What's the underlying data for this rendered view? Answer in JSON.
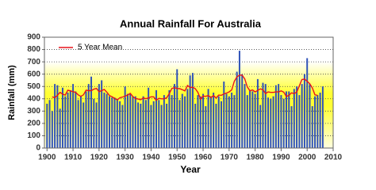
{
  "chart_data": {
    "type": "bar",
    "title": "Annual Rainfall For Australia",
    "x_label": "Year",
    "y_label": "Rainfall (mm)",
    "x": [
      1900,
      1901,
      1902,
      1903,
      1904,
      1905,
      1906,
      1907,
      1908,
      1909,
      1910,
      1911,
      1912,
      1913,
      1914,
      1915,
      1916,
      1917,
      1918,
      1919,
      1920,
      1921,
      1922,
      1923,
      1924,
      1925,
      1926,
      1927,
      1928,
      1929,
      1930,
      1931,
      1932,
      1933,
      1934,
      1935,
      1936,
      1937,
      1938,
      1939,
      1940,
      1941,
      1942,
      1943,
      1944,
      1945,
      1946,
      1947,
      1948,
      1949,
      1950,
      1951,
      1952,
      1953,
      1954,
      1955,
      1956,
      1957,
      1958,
      1959,
      1960,
      1961,
      1962,
      1963,
      1964,
      1965,
      1966,
      1967,
      1968,
      1969,
      1970,
      1971,
      1972,
      1973,
      1974,
      1975,
      1976,
      1977,
      1978,
      1979,
      1980,
      1981,
      1982,
      1983,
      1984,
      1985,
      1986,
      1987,
      1988,
      1989,
      1990,
      1991,
      1992,
      1993,
      1994,
      1995,
      1996,
      1997,
      1998,
      1999,
      2000,
      2001,
      2002,
      2003,
      2004,
      2005,
      2006
    ],
    "values": [
      360,
      390,
      300,
      520,
      510,
      320,
      490,
      420,
      450,
      470,
      520,
      460,
      390,
      420,
      370,
      460,
      520,
      580,
      400,
      370,
      520,
      550,
      450,
      440,
      420,
      410,
      410,
      400,
      380,
      350,
      500,
      440,
      440,
      420,
      420,
      370,
      360,
      420,
      390,
      490,
      350,
      380,
      470,
      390,
      350,
      430,
      360,
      470,
      430,
      520,
      640,
      390,
      440,
      420,
      480,
      590,
      610,
      360,
      430,
      420,
      440,
      340,
      480,
      420,
      450,
      360,
      420,
      380,
      540,
      440,
      420,
      450,
      430,
      620,
      790,
      600,
      520,
      430,
      470,
      460,
      440,
      560,
      350,
      530,
      520,
      410,
      400,
      420,
      510,
      520,
      430,
      400,
      460,
      460,
      340,
      480,
      500,
      430,
      520,
      600,
      730,
      520,
      340,
      420,
      430,
      450,
      500
    ],
    "color": "#2f52b8",
    "series": [
      {
        "name": "5 Year Mean",
        "color": "#e8141b",
        "values": [
          null,
          null,
          416,
          408,
          428,
          452,
          438,
          430,
          470,
          464,
          458,
          452,
          432,
          420,
          432,
          470,
          466,
          466,
          478,
          484,
          458,
          466,
          476,
          454,
          426,
          416,
          404,
          390,
          408,
          414,
          422,
          430,
          444,
          418,
          402,
          398,
          392,
          406,
          402,
          406,
          416,
          416,
          388,
          404,
          400,
          400,
          408,
          442,
          484,
          490,
          484,
          482,
          474,
          464,
          508,
          492,
          494,
          482,
          452,
          398,
          422,
          420,
          426,
          410,
          426,
          406,
          430,
          428,
          440,
          446,
          456,
          472,
          542,
          578,
          592,
          592,
          562,
          496,
          464,
          472,
          456,
          468,
          480,
          474,
          442,
          456,
          452,
          452,
          456,
          456,
          464,
          454,
          418,
          428,
          448,
          442,
          454,
          506,
          556,
          560,
          542,
          522,
          488,
          432,
          428,
          null,
          null
        ]
      }
    ],
    "xlim": [
      1899,
      2010
    ],
    "xticks": [
      1900,
      1910,
      1920,
      1930,
      1940,
      1950,
      1960,
      1970,
      1980,
      1990,
      2000,
      2010
    ],
    "ylim": [
      0,
      900
    ],
    "yticks": [
      0,
      100,
      200,
      300,
      400,
      500,
      600,
      700,
      800,
      900
    ],
    "grid": true,
    "legend": "upper left"
  }
}
